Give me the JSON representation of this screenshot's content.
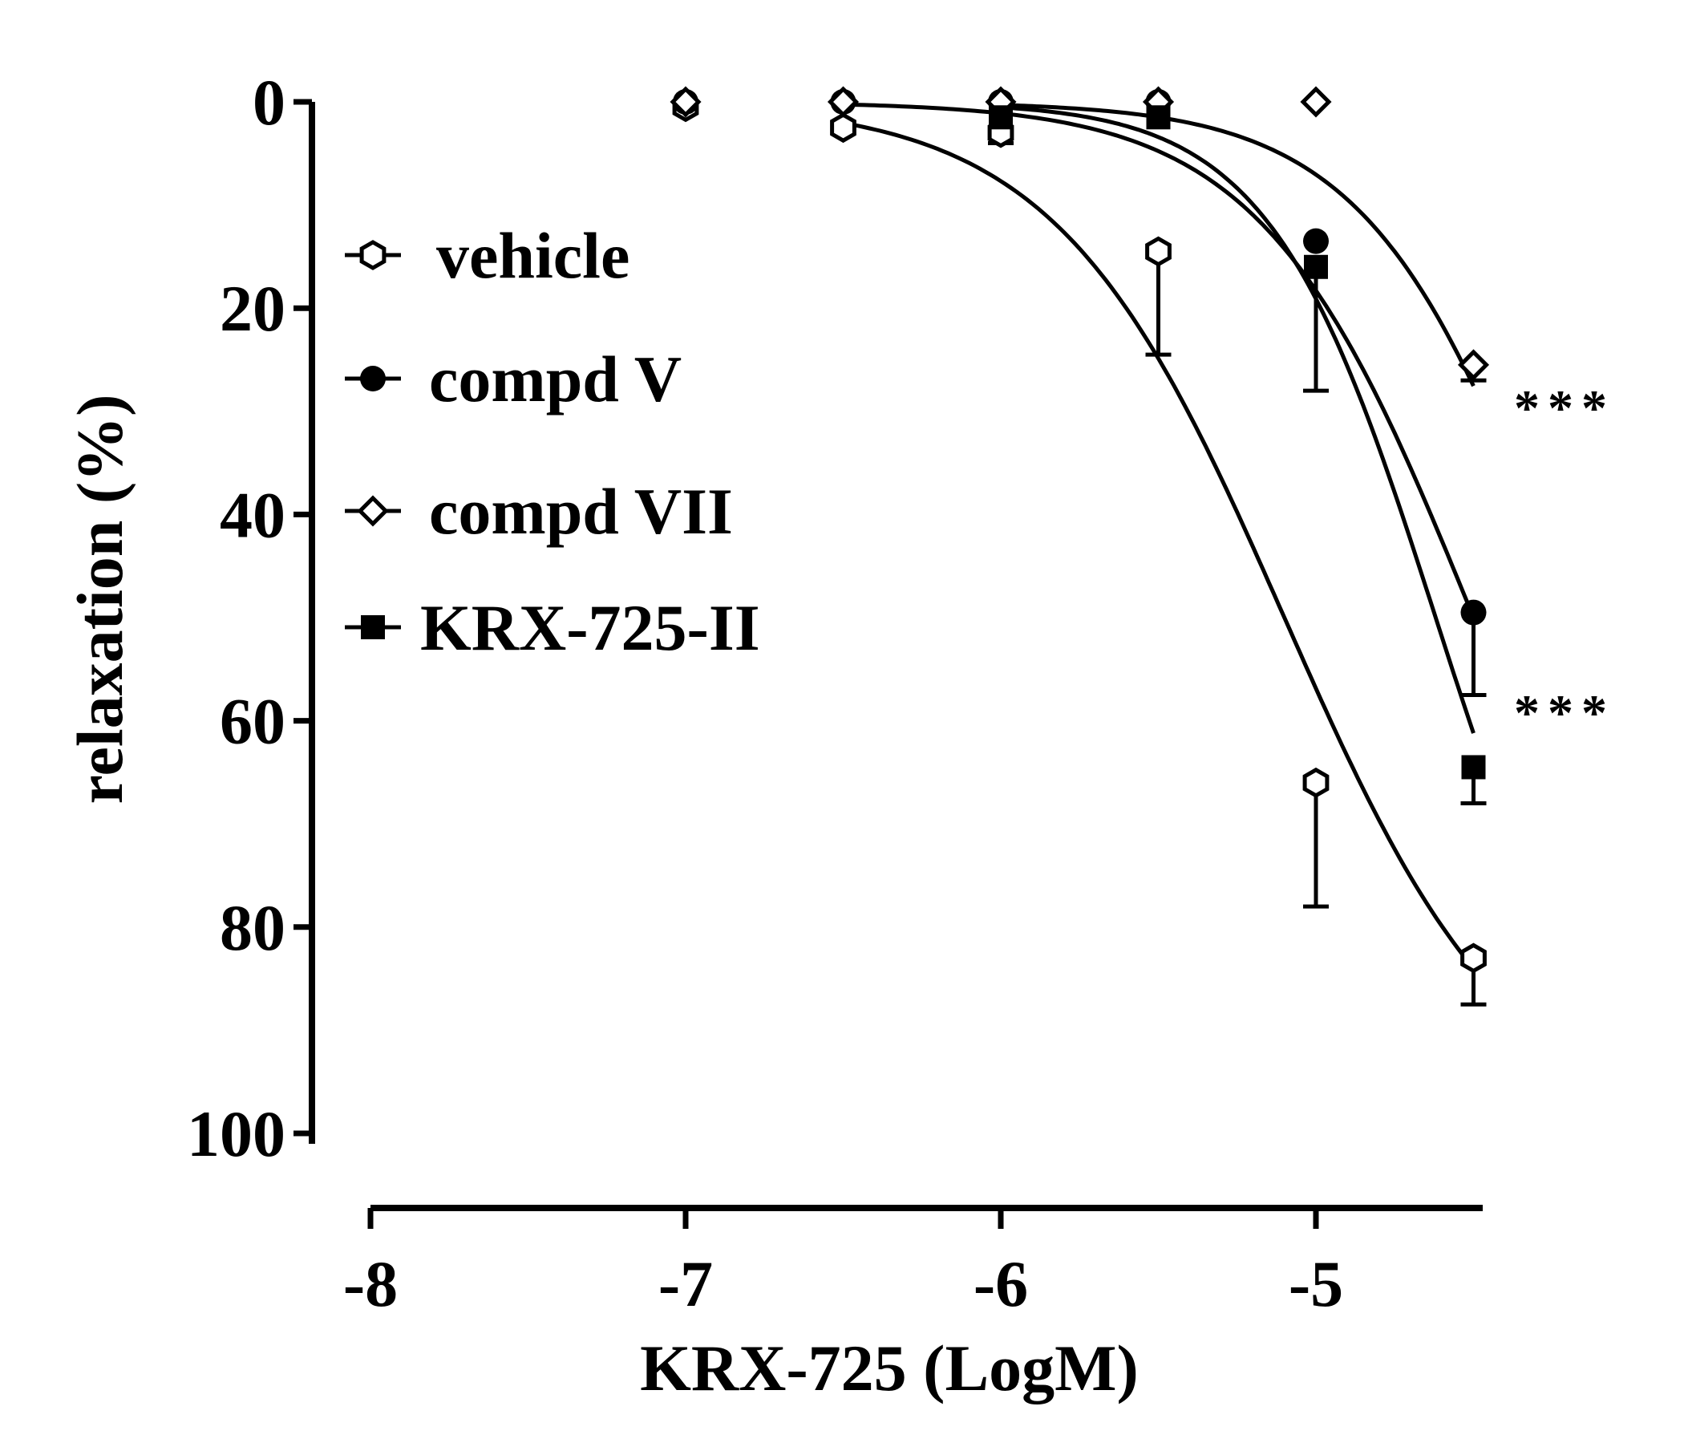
{
  "chart_data": {
    "type": "line",
    "xlabel": "KRX-725 (LogM)",
    "ylabel": "relaxation (%)",
    "xlim": [
      -8,
      -4.5
    ],
    "ylim": [
      0,
      100
    ],
    "y_inverted": true,
    "x_ticks": [
      "-8",
      "-7",
      "-6",
      "-5"
    ],
    "x_tick_values": [
      -8,
      -7,
      -6,
      -5
    ],
    "y_ticks": [
      "0",
      "20",
      "40",
      "60",
      "80",
      "100"
    ],
    "y_tick_values": [
      0,
      20,
      40,
      60,
      80,
      100
    ],
    "legend_position": "upper-left",
    "grid": false,
    "series": [
      {
        "name": "vehicle",
        "marker": "open-hexagon",
        "x": [
          -7,
          -6.5,
          -6,
          -5.5,
          -5,
          -4.5
        ],
        "y": [
          0.5,
          2.5,
          3,
          14.5,
          66,
          83
        ],
        "error": [
          0,
          0,
          0,
          10,
          12,
          4.5
        ],
        "fit": {
          "top": 0,
          "bottom": 100,
          "logEC50": -5.1,
          "hill": 1.2
        }
      },
      {
        "name": "compd V",
        "marker": "filled-circle",
        "x": [
          -7,
          -6.5,
          -6,
          -5.5,
          -5,
          -4.5
        ],
        "y": [
          0,
          0,
          0,
          0,
          13.5,
          49.5
        ],
        "error": [
          0,
          0,
          0,
          0,
          0,
          8
        ],
        "fit": {
          "top": 0,
          "bottom": 100,
          "logEC50": -4.5,
          "hill": 1.3
        }
      },
      {
        "name": "compd VII",
        "marker": "open-diamond",
        "x": [
          -7,
          -6.5,
          -6,
          -5.5,
          -5,
          -4.5
        ],
        "y": [
          0,
          0,
          0,
          0,
          0,
          25.5
        ],
        "error": [
          0,
          0,
          0,
          0,
          0,
          1.5
        ],
        "fit": {
          "top": 0,
          "bottom": 100,
          "logEC50": -4.2,
          "hill": 1.4
        }
      },
      {
        "name": "KRX-725-II",
        "marker": "filled-square",
        "x": [
          -6,
          -5.5,
          -5,
          -4.5
        ],
        "y": [
          1.5,
          1.5,
          16,
          64.5
        ],
        "error": [
          2.5,
          0,
          12,
          3.5
        ],
        "fit": {
          "top": 0,
          "bottom": 100,
          "logEC50": -4.62,
          "hill": 1.65
        }
      }
    ],
    "annotations": [
      {
        "text": "***",
        "near_series": "compd VII",
        "x": -4.5,
        "y": 28.5
      },
      {
        "text": "***",
        "near_series": "compd V",
        "x": -4.5,
        "y": 58
      }
    ]
  }
}
